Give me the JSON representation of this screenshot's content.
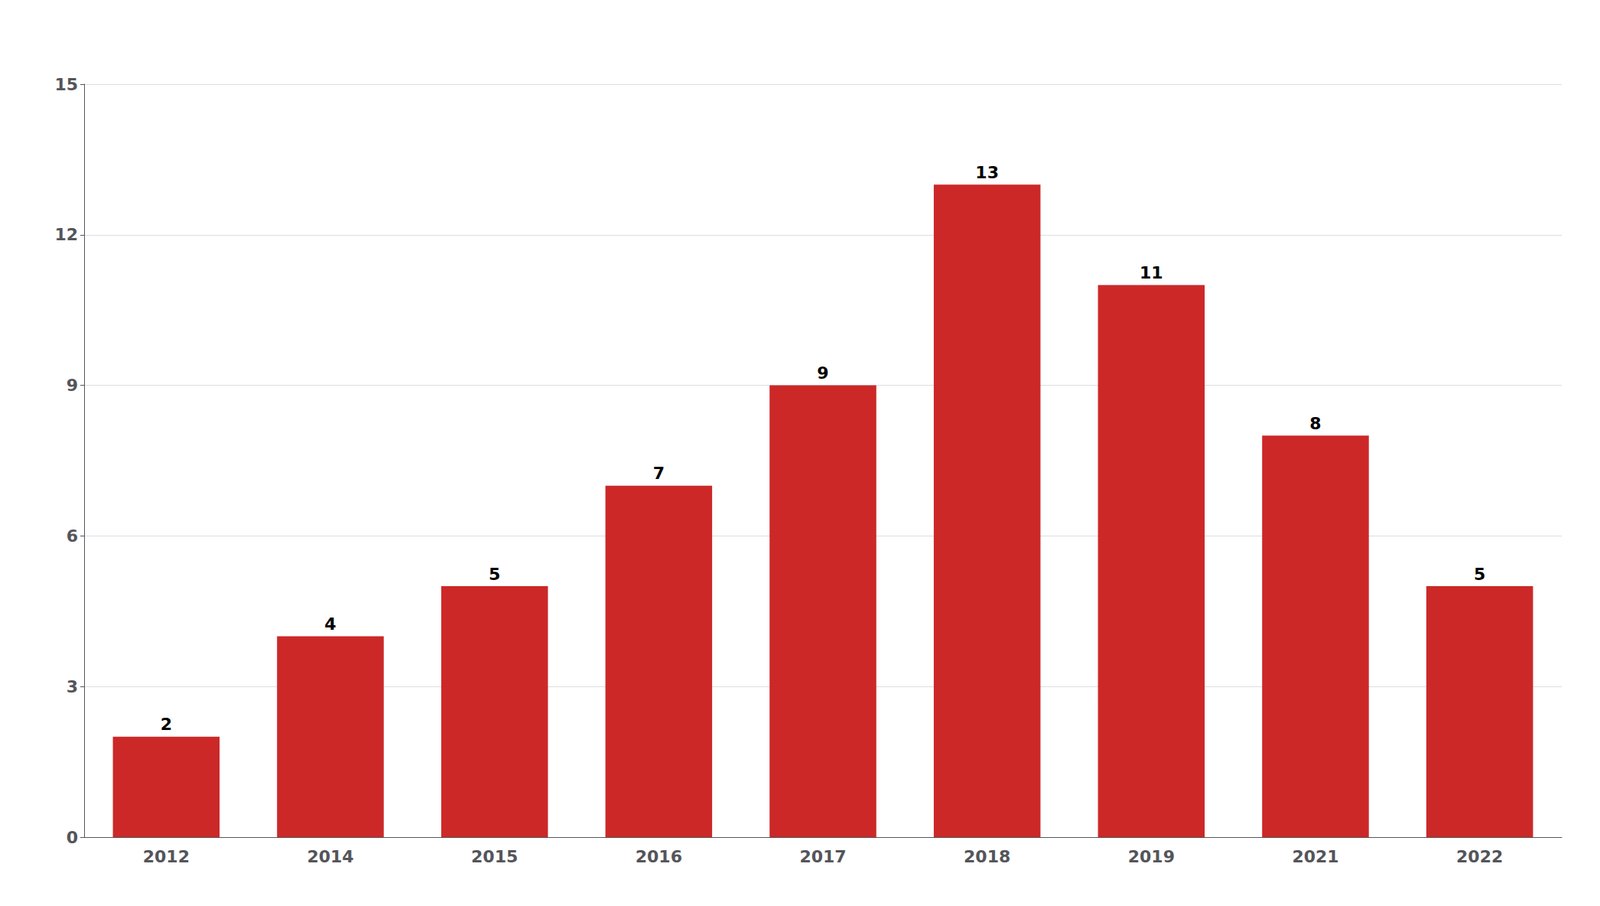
{
  "chart_data": {
    "type": "bar",
    "categories": [
      "2012",
      "2014",
      "2015",
      "2016",
      "2017",
      "2018",
      "2019",
      "2021",
      "2022"
    ],
    "values": [
      2,
      4,
      5,
      7,
      9,
      13,
      11,
      8,
      5
    ],
    "color": "#cc2828",
    "ylim": [
      0,
      15
    ],
    "yticks": [
      0,
      3,
      6,
      9,
      12,
      15
    ],
    "grid": true,
    "data_labels": true
  }
}
